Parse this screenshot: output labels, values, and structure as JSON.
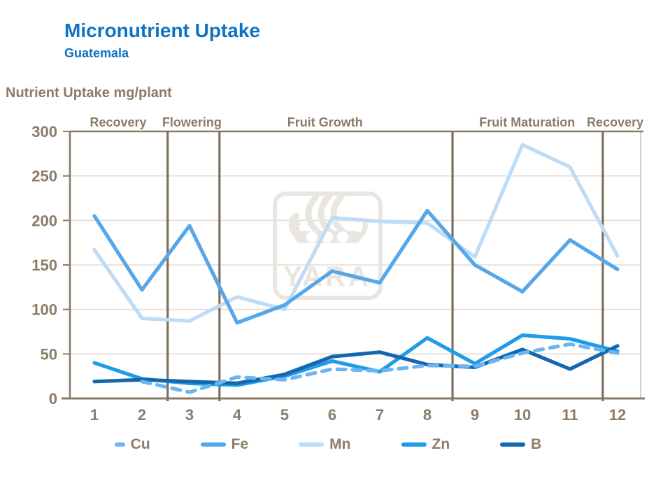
{
  "page": {
    "title": "Micronutrient Uptake",
    "subtitle": "Guatemala",
    "axis_title": "Nutrient Uptake mg/plant",
    "watermark": "YARA"
  },
  "colors": {
    "title_blue": "#0E73C4",
    "text_brown": "#8C7B68",
    "axis_brown": "#8A7B69",
    "gridline": "#E4DBD2",
    "plot_right_border": "#CCC2B6",
    "phase_divider": "#7E705F",
    "watermark_gray": "#E9E6E2"
  },
  "chart_data": {
    "type": "line",
    "title": "Micronutrient Uptake",
    "subtitle": "Guatemala",
    "ylabel": "Nutrient Uptake mg/plant",
    "xlabel": "",
    "x": [
      1,
      2,
      3,
      4,
      5,
      6,
      7,
      8,
      9,
      10,
      11,
      12
    ],
    "ylim": [
      0,
      300
    ],
    "yticks": [
      0,
      50,
      100,
      150,
      200,
      250,
      300
    ],
    "grid": "horizontal",
    "legend_position": "bottom",
    "series": [
      {
        "name": "Cu",
        "color": "#6CB5F0",
        "dash": true,
        "values": [
          null,
          19,
          7,
          24,
          21,
          33,
          31,
          37,
          36,
          51,
          61,
          51
        ]
      },
      {
        "name": "Fe",
        "color": "#57A7E8",
        "dash": false,
        "values": [
          205,
          122,
          194,
          85,
          105,
          143,
          130,
          211,
          150,
          120,
          178,
          145
        ]
      },
      {
        "name": "Mn",
        "color": "#BFDCF6",
        "dash": false,
        "values": [
          167,
          90,
          87,
          114,
          100,
          203,
          199,
          197,
          159,
          285,
          260,
          160
        ]
      },
      {
        "name": "Zn",
        "color": "#1E9BE9",
        "dash": false,
        "values": [
          40,
          22,
          17,
          15,
          25,
          42,
          30,
          68,
          39,
          71,
          67,
          53
        ]
      },
      {
        "name": "B",
        "color": "#1467AE",
        "dash": false,
        "values": [
          19,
          21,
          19,
          17,
          27,
          47,
          52,
          38,
          35,
          55,
          33,
          59
        ]
      }
    ],
    "draw_order": [
      "Mn",
      "Fe",
      "Zn",
      "B",
      "Cu"
    ],
    "phases": {
      "dividers_x": [
        2.54,
        3.63,
        8.53,
        11.69
      ],
      "labels": [
        {
          "text": "Recovery",
          "center": 1.5
        },
        {
          "text": "Flowering",
          "center": 3.05
        },
        {
          "text": "Fruit Growth",
          "center": 5.85
        },
        {
          "text": "Fruit Maturation",
          "center": 10.1
        },
        {
          "text": "Recovery",
          "center": 11.95
        }
      ]
    }
  }
}
